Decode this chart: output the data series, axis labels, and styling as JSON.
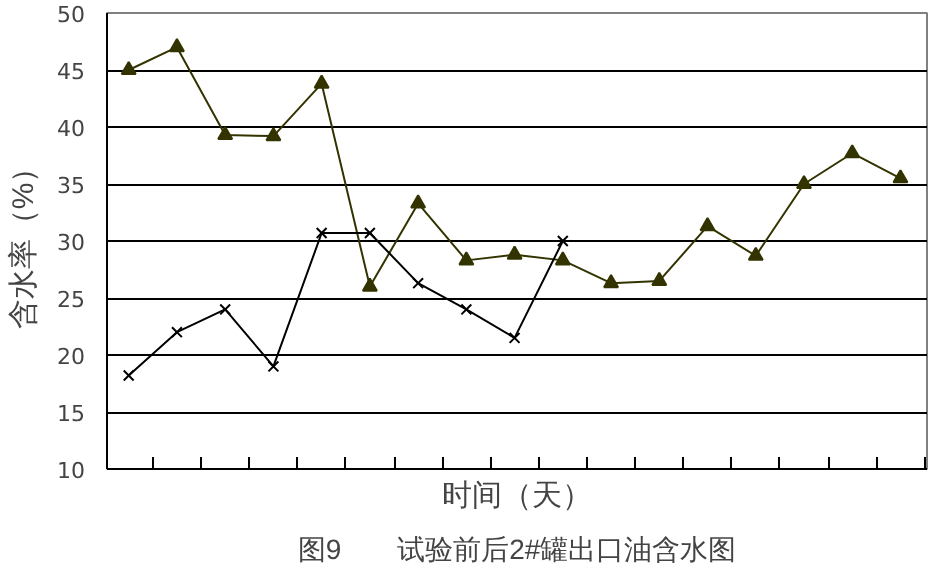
{
  "chart_data": {
    "type": "line",
    "title": "图9　　试验前后2#罐出口油含水图",
    "xlabel": "时间（天）",
    "ylabel": "含水率（%）",
    "categories": [
      null,
      null,
      null,
      null,
      null,
      null,
      null,
      null,
      null,
      null,
      null,
      null,
      null,
      null,
      null,
      null,
      null
    ],
    "series": [
      {
        "color": "#333300",
        "marker": "triangle",
        "values": [
          45,
          47,
          39.3,
          39.2,
          43.8,
          26,
          33.3,
          28.3,
          28.8,
          28.3,
          26.3,
          26.5,
          31.3,
          28.7,
          35,
          37.7,
          35.5
        ]
      },
      {
        "color": "#000000",
        "marker": "cross",
        "values": [
          18.2,
          22,
          24,
          19,
          30.7,
          30.7,
          26.3,
          24,
          21.5,
          30,
          null,
          null,
          null,
          null,
          null,
          null,
          null
        ]
      }
    ],
    "ylim": [
      10,
      50
    ],
    "yticks": [
      10,
      15,
      20,
      25,
      30,
      35,
      40,
      45,
      50
    ],
    "grid": "y",
    "tick_labels": "y"
  }
}
